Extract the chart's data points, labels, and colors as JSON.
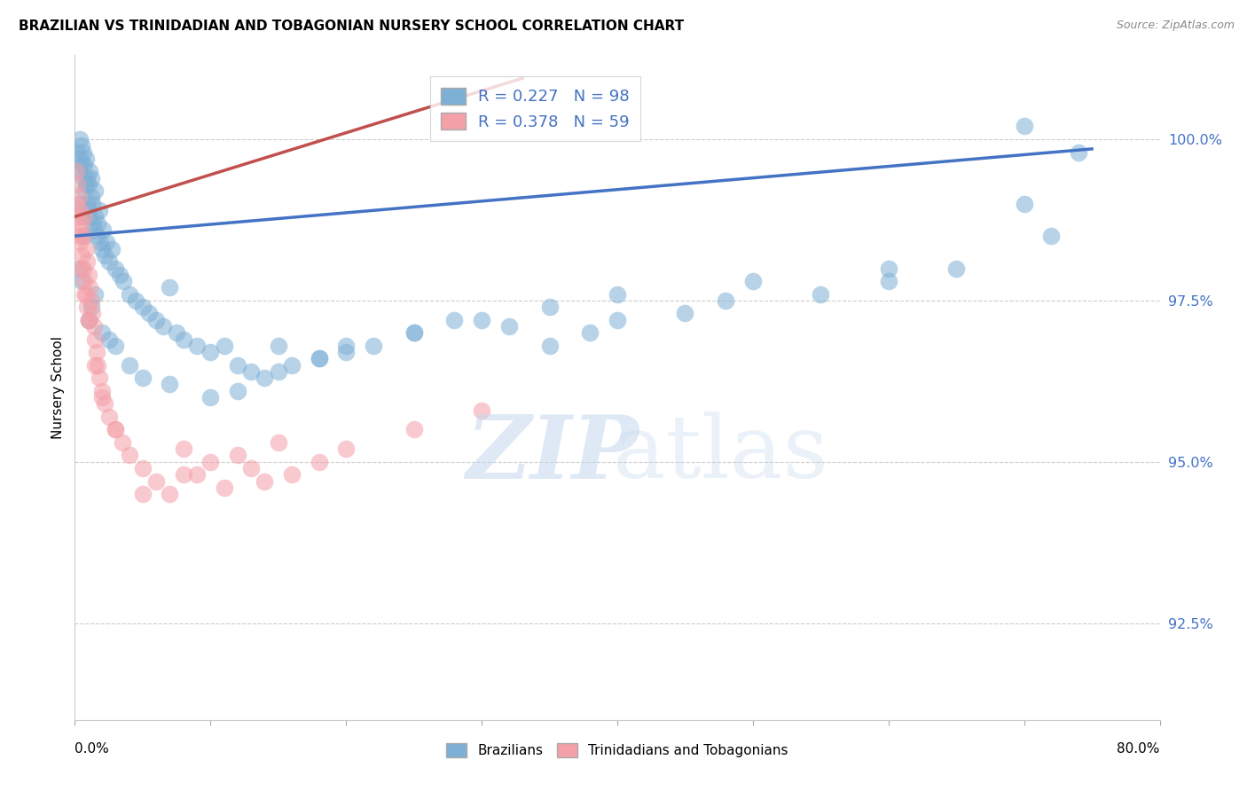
{
  "title": "BRAZILIAN VS TRINIDADIAN AND TOBAGONIAN NURSERY SCHOOL CORRELATION CHART",
  "source": "Source: ZipAtlas.com",
  "ylabel": "Nursery School",
  "ytick_values": [
    92.5,
    95.0,
    97.5,
    100.0
  ],
  "ytick_labels": [
    "92.5%",
    "95.0%",
    "97.5%",
    "100.0%"
  ],
  "xlim": [
    0.0,
    80.0
  ],
  "ylim": [
    91.0,
    101.3
  ],
  "blue_R": 0.227,
  "blue_N": 98,
  "pink_R": 0.378,
  "pink_N": 59,
  "blue_color": "#7EB0D5",
  "pink_color": "#F4A0A8",
  "blue_line_color": "#4472C4",
  "pink_line_color": "#C0504D",
  "legend_label_blue": "Brazilians",
  "legend_label_pink": "Trinidadians and Tobagonians",
  "blue_scatter_x": [
    0.2,
    0.3,
    0.4,
    0.4,
    0.5,
    0.5,
    0.6,
    0.6,
    0.7,
    0.7,
    0.8,
    0.8,
    0.9,
    0.9,
    1.0,
    1.0,
    1.1,
    1.1,
    1.2,
    1.2,
    1.3,
    1.3,
    1.4,
    1.5,
    1.5,
    1.6,
    1.7,
    1.8,
    1.9,
    2.0,
    2.1,
    2.2,
    2.3,
    2.5,
    2.7,
    3.0,
    3.3,
    3.6,
    4.0,
    4.5,
    5.0,
    5.5,
    6.0,
    6.5,
    7.0,
    7.5,
    8.0,
    9.0,
    10.0,
    11.0,
    12.0,
    13.0,
    14.0,
    15.0,
    16.0,
    18.0,
    20.0,
    22.0,
    25.0,
    28.0,
    32.0,
    35.0,
    38.0,
    40.0,
    45.0,
    48.0,
    55.0,
    60.0,
    65.0,
    70.0,
    72.0,
    0.3,
    0.5,
    0.7,
    1.0,
    1.2,
    1.5,
    2.0,
    2.5,
    3.0,
    4.0,
    5.0,
    7.0,
    10.0,
    12.0,
    15.0,
    18.0,
    20.0,
    25.0,
    30.0,
    35.0,
    40.0,
    50.0,
    60.0,
    70.0,
    74.0,
    0.4,
    0.6
  ],
  "blue_scatter_y": [
    99.8,
    99.5,
    99.7,
    100.0,
    99.6,
    99.9,
    99.4,
    99.8,
    99.2,
    99.6,
    99.3,
    99.7,
    99.0,
    99.4,
    98.9,
    99.3,
    99.5,
    98.8,
    99.1,
    99.4,
    98.7,
    99.0,
    98.6,
    98.8,
    99.2,
    98.5,
    98.7,
    98.9,
    98.4,
    98.3,
    98.6,
    98.2,
    98.4,
    98.1,
    98.3,
    98.0,
    97.9,
    97.8,
    97.6,
    97.5,
    97.4,
    97.3,
    97.2,
    97.1,
    97.7,
    97.0,
    96.9,
    96.8,
    96.7,
    96.8,
    96.5,
    96.4,
    96.3,
    96.8,
    96.5,
    96.6,
    96.7,
    96.8,
    97.0,
    97.2,
    97.1,
    96.8,
    97.0,
    97.2,
    97.3,
    97.5,
    97.6,
    97.8,
    98.0,
    99.0,
    98.5,
    98.0,
    97.8,
    98.5,
    97.2,
    97.4,
    97.6,
    97.0,
    96.9,
    96.8,
    96.5,
    96.3,
    96.2,
    96.0,
    96.1,
    96.4,
    96.6,
    96.8,
    97.0,
    97.2,
    97.4,
    97.6,
    97.8,
    98.0,
    100.2,
    99.8,
    99.0,
    98.8
  ],
  "pink_scatter_x": [
    0.1,
    0.1,
    0.2,
    0.2,
    0.3,
    0.3,
    0.4,
    0.4,
    0.5,
    0.5,
    0.6,
    0.6,
    0.7,
    0.7,
    0.8,
    0.8,
    0.9,
    0.9,
    1.0,
    1.0,
    1.1,
    1.2,
    1.3,
    1.4,
    1.5,
    1.6,
    1.7,
    1.8,
    2.0,
    2.2,
    2.5,
    3.0,
    3.5,
    4.0,
    5.0,
    6.0,
    7.0,
    8.0,
    9.0,
    10.0,
    11.0,
    12.0,
    13.0,
    14.0,
    15.0,
    16.0,
    18.0,
    20.0,
    25.0,
    30.0,
    0.3,
    0.5,
    0.7,
    1.0,
    1.5,
    2.0,
    3.0,
    5.0,
    8.0
  ],
  "pink_scatter_y": [
    99.5,
    99.0,
    99.3,
    98.8,
    99.1,
    98.6,
    98.9,
    98.4,
    98.7,
    98.2,
    98.5,
    98.0,
    98.8,
    97.8,
    98.3,
    97.6,
    98.1,
    97.4,
    97.9,
    97.2,
    97.7,
    97.5,
    97.3,
    97.1,
    96.9,
    96.7,
    96.5,
    96.3,
    96.1,
    95.9,
    95.7,
    95.5,
    95.3,
    95.1,
    94.9,
    94.7,
    94.5,
    95.2,
    94.8,
    95.0,
    94.6,
    95.1,
    94.9,
    94.7,
    95.3,
    94.8,
    95.0,
    95.2,
    95.5,
    95.8,
    98.5,
    98.0,
    97.6,
    97.2,
    96.5,
    96.0,
    95.5,
    94.5,
    94.8
  ],
  "blue_trend_x": [
    0,
    75
  ],
  "blue_trend_y_intercept": 98.5,
  "blue_trend_slope": 0.018,
  "pink_trend_x": [
    0,
    33
  ],
  "pink_trend_y_intercept": 98.8,
  "pink_trend_slope": 0.065,
  "watermark_zip_color": "#C5D8ED",
  "watermark_atlas_color": "#C5D8ED",
  "grid_color": "#cccccc",
  "tick_color": "#4472C4"
}
